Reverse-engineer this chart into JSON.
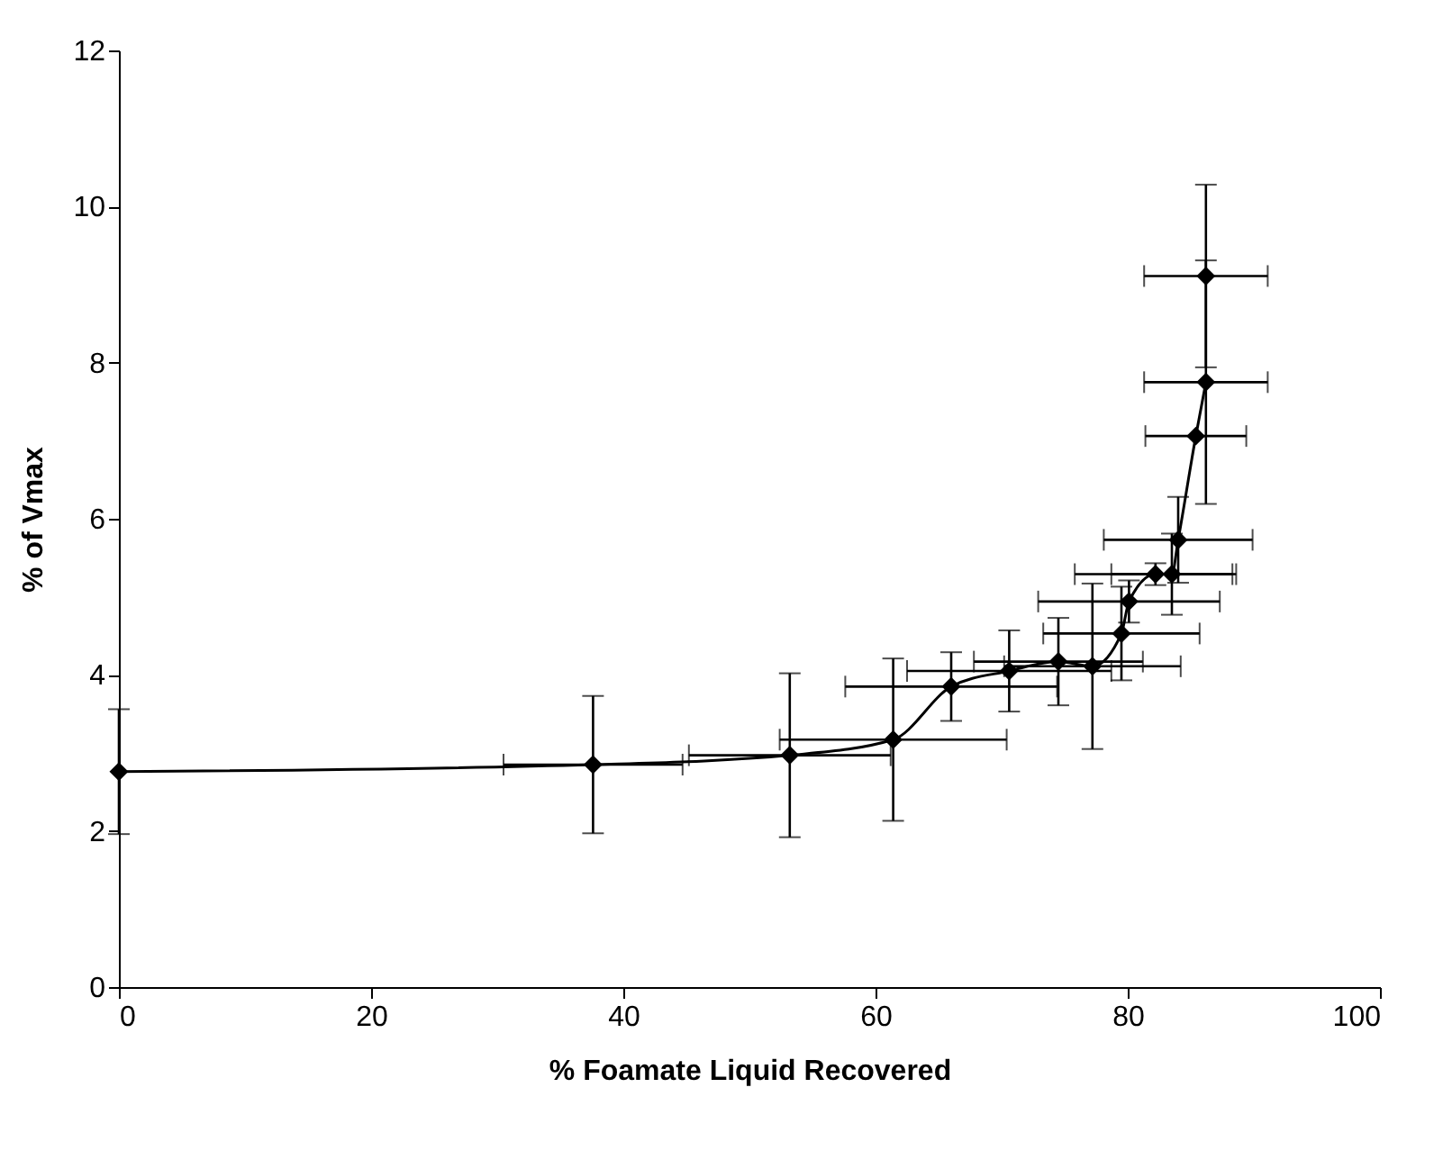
{
  "chart_data": {
    "type": "line",
    "xlabel": "% Foamate Liquid Recovered",
    "ylabel": "% of Vmax",
    "xlim": [
      0,
      100
    ],
    "xticks": [
      0,
      20,
      40,
      60,
      80,
      100
    ],
    "ylim": [
      0,
      12
    ],
    "yticks": [
      0,
      2,
      4,
      6,
      8,
      10,
      12
    ],
    "grid": false,
    "marker": "diamond",
    "line_style": "solid",
    "series": [
      {
        "color": "#000000",
        "x": [
          0,
          37.6,
          53.2,
          61.4,
          66,
          70.6,
          74.5,
          77.2,
          79.5,
          80.1,
          82.2,
          83.5,
          84,
          85.4,
          86.2
        ],
        "values": [
          2.76,
          2.85,
          2.97,
          3.17,
          3.85,
          4.05,
          4.17,
          4.11,
          4.53,
          4.94,
          5.29,
          5.29,
          5.73,
          7.06,
          7.75
        ],
        "errors": [
          0.8,
          0.88,
          1.05,
          1.04,
          0.44,
          0.52,
          0.56,
          1.06,
          0.6,
          0.27,
          0.14,
          0.52,
          0.55,
          null,
          1.56
        ],
        "xerrors": [
          null,
          7.1,
          8,
          9,
          8.4,
          8.1,
          6.7,
          7,
          6.2,
          7.2,
          6.4,
          4.8,
          5.9,
          4,
          4.9
        ]
      },
      {
        "type": "scatter",
        "color": "#000000",
        "x": [
          86.2
        ],
        "values": [
          9.11
        ],
        "errors": [
          1.17
        ],
        "xerrors": [
          4.9
        ]
      }
    ]
  }
}
